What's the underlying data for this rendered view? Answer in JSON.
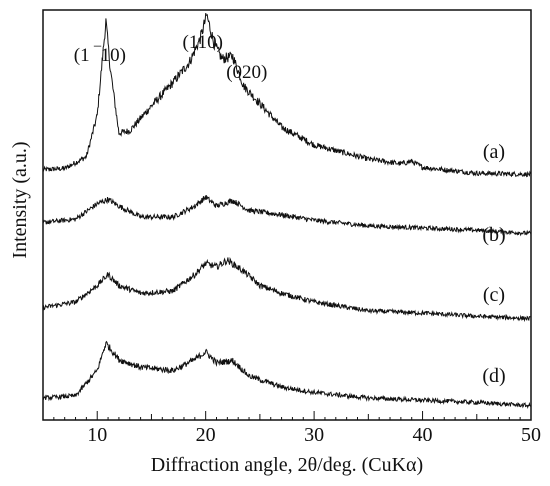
{
  "chart_data": {
    "type": "line",
    "title": "",
    "xlabel": "Diffraction angle, 2θ/deg. (CuKα)",
    "ylabel": "Intensity (a.u.)",
    "xlim": [
      5,
      50
    ],
    "xticks": [
      10,
      20,
      30,
      40,
      50
    ],
    "y_ticks_shown": false,
    "grid": false,
    "legend": "none",
    "peak_annotations": [
      {
        "label": "(1 ‾10)",
        "x": 10.8
      },
      {
        "label": "(110)",
        "x": 20.1
      },
      {
        "label": "(020)",
        "x": 22.5
      }
    ],
    "series": [
      {
        "name": "(a)",
        "x": [
          5,
          7,
          9,
          10,
          10.5,
          10.8,
          11.2,
          12,
          13,
          15,
          17,
          18.5,
          19.5,
          20.1,
          20.8,
          21.5,
          22.5,
          23.5,
          25,
          27,
          30,
          35,
          38,
          39,
          40,
          45,
          50
        ],
        "y": [
          0.24,
          0.25,
          0.35,
          0.7,
          1.2,
          1.5,
          1.1,
          0.55,
          0.57,
          0.78,
          0.98,
          1.15,
          1.35,
          1.55,
          1.3,
          1.18,
          1.2,
          0.95,
          0.8,
          0.6,
          0.45,
          0.33,
          0.29,
          0.31,
          0.26,
          0.21,
          0.2
        ]
      },
      {
        "name": "(b)",
        "x": [
          5,
          8,
          10,
          11,
          12,
          14,
          17,
          19,
          20,
          21,
          22.5,
          24,
          27,
          30,
          35,
          40,
          45,
          50
        ],
        "y": [
          0.25,
          0.28,
          0.42,
          0.46,
          0.4,
          0.3,
          0.3,
          0.4,
          0.48,
          0.4,
          0.45,
          0.36,
          0.32,
          0.27,
          0.22,
          0.2,
          0.18,
          0.15
        ]
      },
      {
        "name": "(c)",
        "x": [
          5,
          8,
          10,
          11,
          12,
          14,
          17,
          19,
          20,
          21,
          22,
          23.5,
          25,
          27,
          30,
          35,
          40,
          45,
          50
        ],
        "y": [
          0.25,
          0.3,
          0.45,
          0.55,
          0.45,
          0.38,
          0.4,
          0.55,
          0.65,
          0.62,
          0.68,
          0.58,
          0.45,
          0.38,
          0.3,
          0.22,
          0.2,
          0.17,
          0.15
        ]
      },
      {
        "name": "(d)",
        "x": [
          5,
          8,
          10,
          10.8,
          12,
          14,
          17,
          19,
          20,
          21,
          22.5,
          24,
          27,
          30,
          35,
          40,
          45,
          50
        ],
        "y": [
          0.2,
          0.22,
          0.45,
          0.7,
          0.55,
          0.48,
          0.45,
          0.55,
          0.62,
          0.52,
          0.54,
          0.4,
          0.3,
          0.25,
          0.2,
          0.18,
          0.16,
          0.13
        ]
      }
    ]
  }
}
